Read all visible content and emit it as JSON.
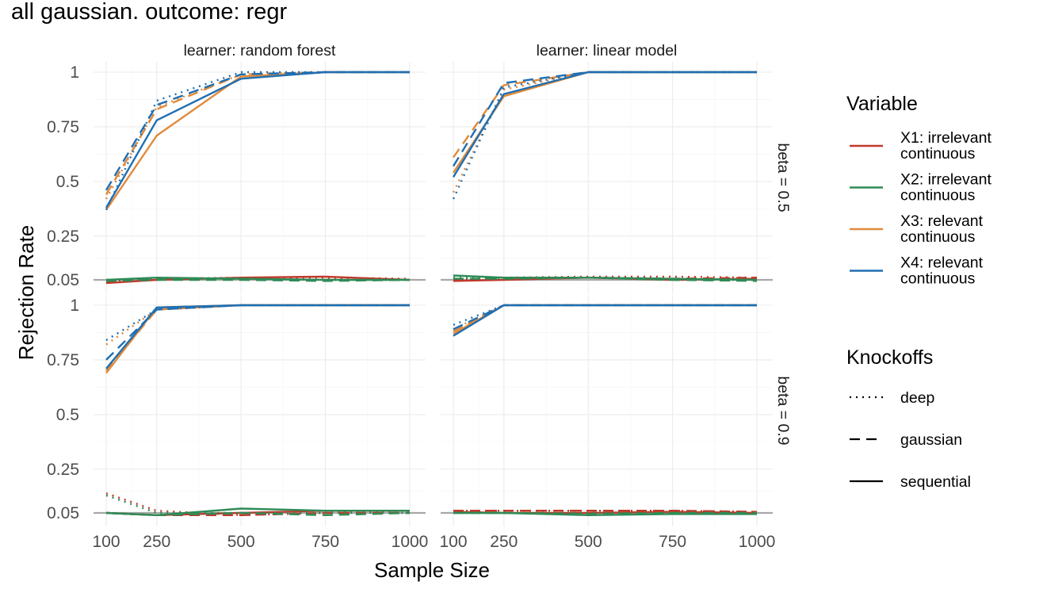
{
  "title": "all gaussian. outcome: regr",
  "chart_data": {
    "type": "line",
    "title": "all gaussian. outcome: regr",
    "xlabel": "Sample Size",
    "ylabel": "Rejection Rate",
    "x_ticks": [
      100,
      250,
      500,
      750,
      1000
    ],
    "y_ticks": [
      0.05,
      0.25,
      0.5,
      0.75,
      1
    ],
    "y_tick_labels": [
      "0.05",
      "0.25",
      "0.5",
      "0.75",
      "1"
    ],
    "xlim": [
      100,
      1000
    ],
    "ylim": [
      0.05,
      1
    ],
    "reference_line": 0.05,
    "grid": true,
    "legend_position": "right",
    "legend": {
      "variable_title": "Variable",
      "variables": [
        {
          "line1": "X1: irrelevant",
          "line2": "continuous",
          "color": "#c0392b"
        },
        {
          "line1": "X2: irrelevant",
          "line2": "continuous",
          "color": "#2e8b57"
        },
        {
          "line1": "X3: relevant",
          "line2": "continuous",
          "color": "#e08a3c"
        },
        {
          "line1": "X4: relevant",
          "line2": "continuous",
          "color": "#1f6fb2"
        }
      ],
      "knockoffs_title": "Knockoffs",
      "knockoffs": [
        {
          "label": "deep",
          "dash": "2,6"
        },
        {
          "label": "gaussian",
          "dash": "13,8"
        },
        {
          "label": "sequential",
          "dash": ""
        }
      ]
    },
    "panels": [
      {
        "col_label": "learner: random forest",
        "series": [
          {
            "variable": 0,
            "knockoff": 0,
            "x": [
              100,
              250,
              500,
              750,
              1000
            ],
            "y": [
              0.04,
              0.055,
              0.06,
              0.06,
              0.055
            ]
          },
          {
            "variable": 0,
            "knockoff": 1,
            "x": [
              100,
              250,
              500,
              750,
              1000
            ],
            "y": [
              0.04,
              0.055,
              0.055,
              0.05,
              0.05
            ]
          },
          {
            "variable": 0,
            "knockoff": 2,
            "x": [
              100,
              250,
              500,
              750,
              1000
            ],
            "y": [
              0.035,
              0.05,
              0.06,
              0.065,
              0.05
            ]
          },
          {
            "variable": 1,
            "knockoff": 0,
            "x": [
              100,
              250,
              500,
              750,
              1000
            ],
            "y": [
              0.05,
              0.055,
              0.055,
              0.05,
              0.05
            ]
          },
          {
            "variable": 1,
            "knockoff": 1,
            "x": [
              100,
              250,
              500,
              750,
              1000
            ],
            "y": [
              0.045,
              0.05,
              0.05,
              0.045,
              0.05
            ]
          },
          {
            "variable": 1,
            "knockoff": 2,
            "x": [
              100,
              250,
              500,
              750,
              1000
            ],
            "y": [
              0.05,
              0.06,
              0.055,
              0.05,
              0.05
            ]
          },
          {
            "variable": 2,
            "knockoff": 0,
            "x": [
              100,
              250,
              500,
              750,
              1000
            ],
            "y": [
              0.42,
              0.84,
              0.99,
              1.0,
              1.0
            ]
          },
          {
            "variable": 2,
            "knockoff": 1,
            "x": [
              100,
              250,
              500,
              750,
              1000
            ],
            "y": [
              0.44,
              0.83,
              0.99,
              1.0,
              1.0
            ]
          },
          {
            "variable": 2,
            "knockoff": 2,
            "x": [
              100,
              250,
              500,
              750,
              1000
            ],
            "y": [
              0.37,
              0.71,
              0.98,
              1.0,
              1.0
            ]
          },
          {
            "variable": 3,
            "knockoff": 0,
            "x": [
              100,
              250,
              500,
              750,
              1000
            ],
            "y": [
              0.37,
              0.87,
              1.0,
              1.0,
              1.0
            ]
          },
          {
            "variable": 3,
            "knockoff": 1,
            "x": [
              100,
              250,
              500,
              750,
              1000
            ],
            "y": [
              0.46,
              0.85,
              0.99,
              1.0,
              1.0
            ]
          },
          {
            "variable": 3,
            "knockoff": 2,
            "x": [
              100,
              250,
              500,
              750,
              1000
            ],
            "y": [
              0.38,
              0.78,
              0.97,
              1.0,
              1.0
            ]
          }
        ]
      },
      {
        "col_label": "learner: linear model",
        "row_label": "beta = 0.5",
        "series": [
          {
            "variable": 0,
            "knockoff": 0,
            "x": [
              100,
              250,
              500,
              750,
              1000
            ],
            "y": [
              0.05,
              0.06,
              0.065,
              0.065,
              0.06
            ]
          },
          {
            "variable": 0,
            "knockoff": 1,
            "x": [
              100,
              250,
              500,
              750,
              1000
            ],
            "y": [
              0.05,
              0.06,
              0.06,
              0.055,
              0.06
            ]
          },
          {
            "variable": 0,
            "knockoff": 2,
            "x": [
              100,
              250,
              500,
              750,
              1000
            ],
            "y": [
              0.045,
              0.05,
              0.06,
              0.05,
              0.055
            ]
          },
          {
            "variable": 1,
            "knockoff": 0,
            "x": [
              100,
              250,
              500,
              750,
              1000
            ],
            "y": [
              0.06,
              0.055,
              0.06,
              0.05,
              0.05
            ]
          },
          {
            "variable": 1,
            "knockoff": 1,
            "x": [
              100,
              250,
              500,
              750,
              1000
            ],
            "y": [
              0.055,
              0.055,
              0.06,
              0.05,
              0.045
            ]
          },
          {
            "variable": 1,
            "knockoff": 2,
            "x": [
              100,
              250,
              500,
              750,
              1000
            ],
            "y": [
              0.07,
              0.06,
              0.06,
              0.055,
              0.05
            ]
          },
          {
            "variable": 2,
            "knockoff": 0,
            "x": [
              100,
              250,
              500,
              750,
              1000
            ],
            "y": [
              0.45,
              0.92,
              1.0,
              1.0,
              1.0
            ]
          },
          {
            "variable": 2,
            "knockoff": 1,
            "x": [
              100,
              250,
              500,
              750,
              1000
            ],
            "y": [
              0.61,
              0.94,
              1.0,
              1.0,
              1.0
            ]
          },
          {
            "variable": 2,
            "knockoff": 2,
            "x": [
              100,
              250,
              500,
              750,
              1000
            ],
            "y": [
              0.54,
              0.89,
              1.0,
              1.0,
              1.0
            ]
          },
          {
            "variable": 3,
            "knockoff": 0,
            "x": [
              100,
              250,
              500,
              750,
              1000
            ],
            "y": [
              0.42,
              0.93,
              1.0,
              1.0,
              1.0
            ]
          },
          {
            "variable": 3,
            "knockoff": 1,
            "x": [
              100,
              250,
              500,
              750,
              1000
            ],
            "y": [
              0.57,
              0.95,
              1.0,
              1.0,
              1.0
            ]
          },
          {
            "variable": 3,
            "knockoff": 2,
            "x": [
              100,
              250,
              500,
              750,
              1000
            ],
            "y": [
              0.52,
              0.9,
              1.0,
              1.0,
              1.0
            ]
          }
        ]
      },
      {
        "series": [
          {
            "variable": 0,
            "knockoff": 0,
            "x": [
              100,
              250,
              500,
              750,
              1000
            ],
            "y": [
              0.14,
              0.06,
              0.04,
              0.05,
              0.06
            ]
          },
          {
            "variable": 0,
            "knockoff": 1,
            "x": [
              100,
              250,
              500,
              750,
              1000
            ],
            "y": [
              0.05,
              0.04,
              0.04,
              0.05,
              0.05
            ]
          },
          {
            "variable": 0,
            "knockoff": 2,
            "x": [
              100,
              250,
              500,
              750,
              1000
            ],
            "y": [
              0.05,
              0.04,
              0.05,
              0.06,
              0.06
            ]
          },
          {
            "variable": 1,
            "knockoff": 0,
            "x": [
              100,
              250,
              500,
              750,
              1000
            ],
            "y": [
              0.13,
              0.05,
              0.05,
              0.05,
              0.05
            ]
          },
          {
            "variable": 1,
            "knockoff": 1,
            "x": [
              100,
              250,
              500,
              750,
              1000
            ],
            "y": [
              0.05,
              0.04,
              0.05,
              0.04,
              0.05
            ]
          },
          {
            "variable": 1,
            "knockoff": 2,
            "x": [
              100,
              250,
              500,
              750,
              1000
            ],
            "y": [
              0.05,
              0.04,
              0.07,
              0.06,
              0.06
            ]
          },
          {
            "variable": 2,
            "knockoff": 0,
            "x": [
              100,
              250,
              500,
              750,
              1000
            ],
            "y": [
              0.82,
              0.98,
              1.0,
              1.0,
              1.0
            ]
          },
          {
            "variable": 2,
            "knockoff": 1,
            "x": [
              100,
              250,
              500,
              750,
              1000
            ],
            "y": [
              0.7,
              0.98,
              1.0,
              1.0,
              1.0
            ]
          },
          {
            "variable": 2,
            "knockoff": 2,
            "x": [
              100,
              250,
              500,
              750,
              1000
            ],
            "y": [
              0.69,
              0.99,
              1.0,
              1.0,
              1.0
            ]
          },
          {
            "variable": 3,
            "knockoff": 0,
            "x": [
              100,
              250,
              500,
              750,
              1000
            ],
            "y": [
              0.84,
              0.98,
              1.0,
              1.0,
              1.0
            ]
          },
          {
            "variable": 3,
            "knockoff": 1,
            "x": [
              100,
              250,
              500,
              750,
              1000
            ],
            "y": [
              0.75,
              0.98,
              1.0,
              1.0,
              1.0
            ]
          },
          {
            "variable": 3,
            "knockoff": 2,
            "x": [
              100,
              250,
              500,
              750,
              1000
            ],
            "y": [
              0.71,
              0.99,
              1.0,
              1.0,
              1.0
            ]
          }
        ]
      },
      {
        "row_label": "beta = 0.9",
        "series": [
          {
            "variable": 0,
            "knockoff": 0,
            "x": [
              100,
              250,
              500,
              750,
              1000
            ],
            "y": [
              0.06,
              0.06,
              0.06,
              0.06,
              0.055
            ]
          },
          {
            "variable": 0,
            "knockoff": 1,
            "x": [
              100,
              250,
              500,
              750,
              1000
            ],
            "y": [
              0.06,
              0.06,
              0.06,
              0.06,
              0.055
            ]
          },
          {
            "variable": 0,
            "knockoff": 2,
            "x": [
              100,
              250,
              500,
              750,
              1000
            ],
            "y": [
              0.055,
              0.05,
              0.05,
              0.055,
              0.05
            ]
          },
          {
            "variable": 1,
            "knockoff": 0,
            "x": [
              100,
              250,
              500,
              750,
              1000
            ],
            "y": [
              0.05,
              0.05,
              0.05,
              0.05,
              0.045
            ]
          },
          {
            "variable": 1,
            "knockoff": 1,
            "x": [
              100,
              250,
              500,
              750,
              1000
            ],
            "y": [
              0.05,
              0.05,
              0.045,
              0.05,
              0.05
            ]
          },
          {
            "variable": 1,
            "knockoff": 2,
            "x": [
              100,
              250,
              500,
              750,
              1000
            ],
            "y": [
              0.05,
              0.05,
              0.04,
              0.045,
              0.045
            ]
          },
          {
            "variable": 2,
            "knockoff": 0,
            "x": [
              100,
              250,
              500,
              750,
              1000
            ],
            "y": [
              0.89,
              1.0,
              1.0,
              1.0,
              1.0
            ]
          },
          {
            "variable": 2,
            "knockoff": 1,
            "x": [
              100,
              250,
              500,
              750,
              1000
            ],
            "y": [
              0.88,
              1.0,
              1.0,
              1.0,
              1.0
            ]
          },
          {
            "variable": 2,
            "knockoff": 2,
            "x": [
              100,
              250,
              500,
              750,
              1000
            ],
            "y": [
              0.87,
              1.0,
              1.0,
              1.0,
              1.0
            ]
          },
          {
            "variable": 3,
            "knockoff": 0,
            "x": [
              100,
              250,
              500,
              750,
              1000
            ],
            "y": [
              0.91,
              1.0,
              1.0,
              1.0,
              1.0
            ]
          },
          {
            "variable": 3,
            "knockoff": 1,
            "x": [
              100,
              250,
              500,
              750,
              1000
            ],
            "y": [
              0.89,
              1.0,
              1.0,
              1.0,
              1.0
            ]
          },
          {
            "variable": 3,
            "knockoff": 2,
            "x": [
              100,
              250,
              500,
              750,
              1000
            ],
            "y": [
              0.86,
              1.0,
              1.0,
              1.0,
              1.0
            ]
          }
        ]
      }
    ]
  }
}
